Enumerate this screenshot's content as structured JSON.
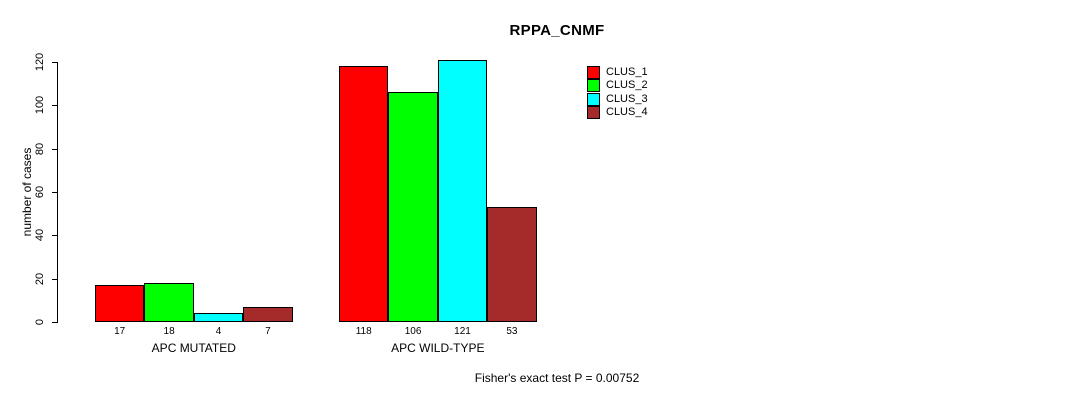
{
  "chart_data": {
    "type": "bar",
    "title": "RPPA_CNMF",
    "ylabel": "number of cases",
    "xlabel": "",
    "categories": [
      "APC MUTATED",
      "APC WILD-TYPE"
    ],
    "series": [
      {
        "name": "CLUS_1",
        "color": "#ff0000",
        "values": [
          17,
          118
        ]
      },
      {
        "name": "CLUS_2",
        "color": "#00ff00",
        "values": [
          18,
          106
        ]
      },
      {
        "name": "CLUS_3",
        "color": "#00ffff",
        "values": [
          4,
          121
        ]
      },
      {
        "name": "CLUS_4",
        "color": "#a52a2a",
        "values": [
          7,
          53
        ]
      }
    ],
    "ylim": [
      0,
      120
    ],
    "yticks": [
      0,
      20,
      40,
      60,
      80,
      100,
      120
    ],
    "grid": false,
    "legend_position": "right",
    "value_labels_shown": true,
    "annotation": "Fisher's exact test P = 0.00752"
  }
}
